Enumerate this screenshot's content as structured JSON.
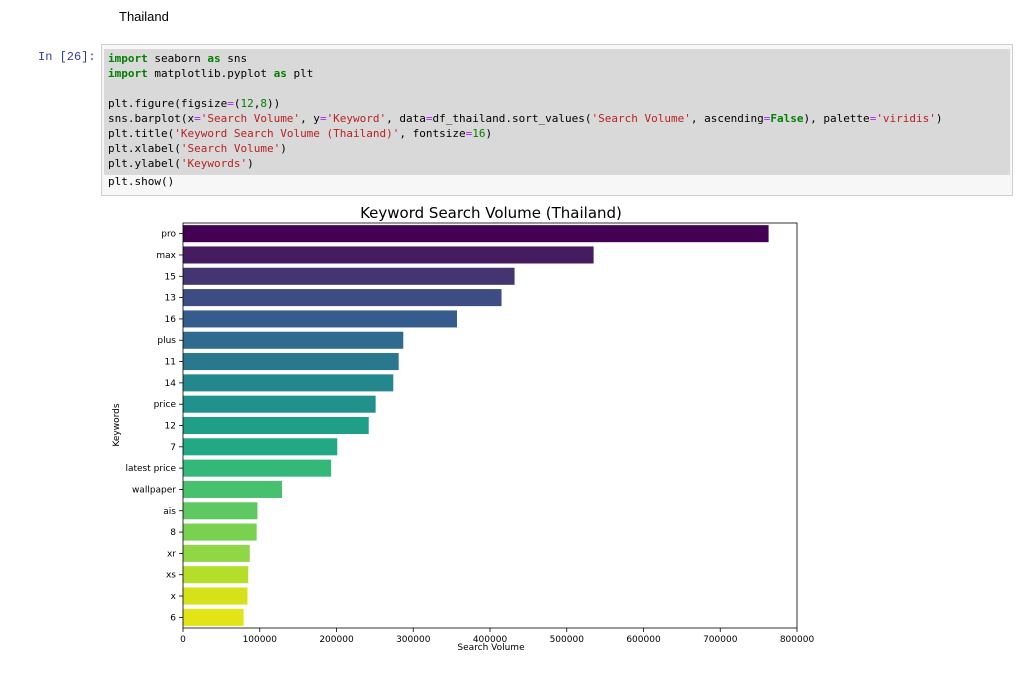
{
  "heading": "Thailand",
  "cell": {
    "prompt": "In [26]:",
    "code_lines": [
      "import seaborn as sns",
      "import matplotlib.pyplot as plt",
      "",
      "plt.figure(figsize=(12,8))",
      "sns.barplot(x='Search Volume', y='Keyword', data=df_thailand.sort_values('Search Volume', ascending=False), palette='viridis')",
      "plt.title('Keyword Search Volume (Thailand)', fontsize=16)",
      "plt.xlabel('Search Volume')",
      "plt.ylabel('Keywords')",
      "plt.show()"
    ]
  },
  "chart_data": {
    "type": "bar",
    "orientation": "horizontal",
    "title": "Keyword Search Volume (Thailand)",
    "xlabel": "Search Volume",
    "ylabel": "Keywords",
    "xlim": [
      0,
      800000
    ],
    "xticks": [
      0,
      100000,
      200000,
      300000,
      400000,
      500000,
      600000,
      700000,
      800000
    ],
    "categories": [
      "pro",
      "max",
      "15",
      "13",
      "16",
      "plus",
      "11",
      "14",
      "price",
      "12",
      "7",
      "latest price",
      "wallpaper",
      "ais",
      "8",
      "xr",
      "xs",
      "x",
      "6"
    ],
    "values": [
      763000,
      535000,
      432000,
      415000,
      357000,
      287000,
      281000,
      274000,
      251000,
      242000,
      201000,
      193000,
      129000,
      97000,
      96000,
      87000,
      85000,
      84000,
      79000
    ],
    "colors": [
      "#440154",
      "#461c61",
      "#443570",
      "#3d4c82",
      "#365c8d",
      "#2f6b8e",
      "#29788e",
      "#24878e",
      "#21918c",
      "#1f9f88",
      "#22a884",
      "#33b87a",
      "#48c16e",
      "#5ec962",
      "#78d151",
      "#8fd744",
      "#b5de2b",
      "#d5e21a",
      "#e2e418"
    ],
    "grid": false,
    "legend": "none"
  }
}
